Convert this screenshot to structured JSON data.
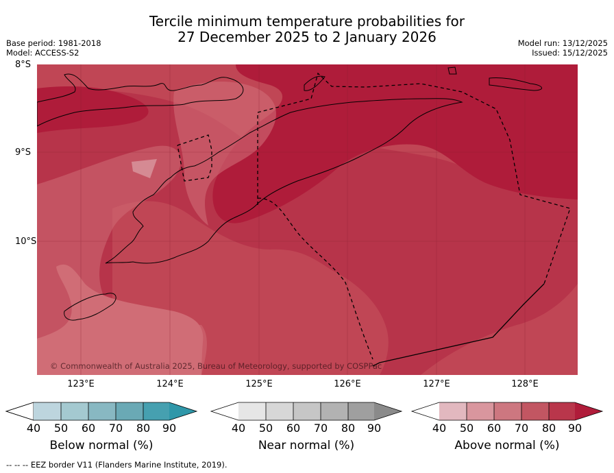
{
  "title": {
    "line1": "Tercile minimum temperature probabilities for",
    "line2": "27 December 2025 to 2 January 2026"
  },
  "meta": {
    "base_period": "Base period: 1981-2018",
    "model": "Model: ACCESS-S2",
    "model_run": "Model run: 13/12/2025",
    "issued": "Issued: 15/12/2025"
  },
  "map": {
    "latitude_labels": [
      "8°S",
      "9°S",
      "10°S"
    ],
    "longitude_labels": [
      "123°E",
      "124°E",
      "125°E",
      "126°E",
      "127°E",
      "128°E"
    ],
    "copyright": "© Commonwealth of Australia 2025, Bureau of Meteorology, supported by COSPPac",
    "category_colors": {
      "above_60": "#d06d76",
      "above_70": "#c04655",
      "above_80": "#b7344a",
      "above_90": "#af1c3a"
    }
  },
  "colorbars": {
    "ticks": [
      "40",
      "50",
      "60",
      "70",
      "80",
      "90"
    ],
    "below": {
      "label": "Below normal (%)",
      "colors": [
        "#bdd5de",
        "#a4c9d0",
        "#88b8c2",
        "#6aa9b5",
        "#46a0b0",
        "#2f97a9"
      ]
    },
    "near": {
      "label": "Near normal (%)",
      "colors": [
        "#e6e6e6",
        "#d7d7d7",
        "#c6c6c6",
        "#b2b2b2",
        "#9f9f9f",
        "#8a8a8a"
      ]
    },
    "above": {
      "label": "Above normal (%)",
      "colors": [
        "#e2b8bf",
        "#d9969e",
        "#cd7780",
        "#c25662",
        "#b9364b",
        "#b01c3a"
      ]
    }
  },
  "footer": {
    "eez_note": "--  --  -- EEZ border V11 (Flanders Marine Institute, 2019)."
  }
}
